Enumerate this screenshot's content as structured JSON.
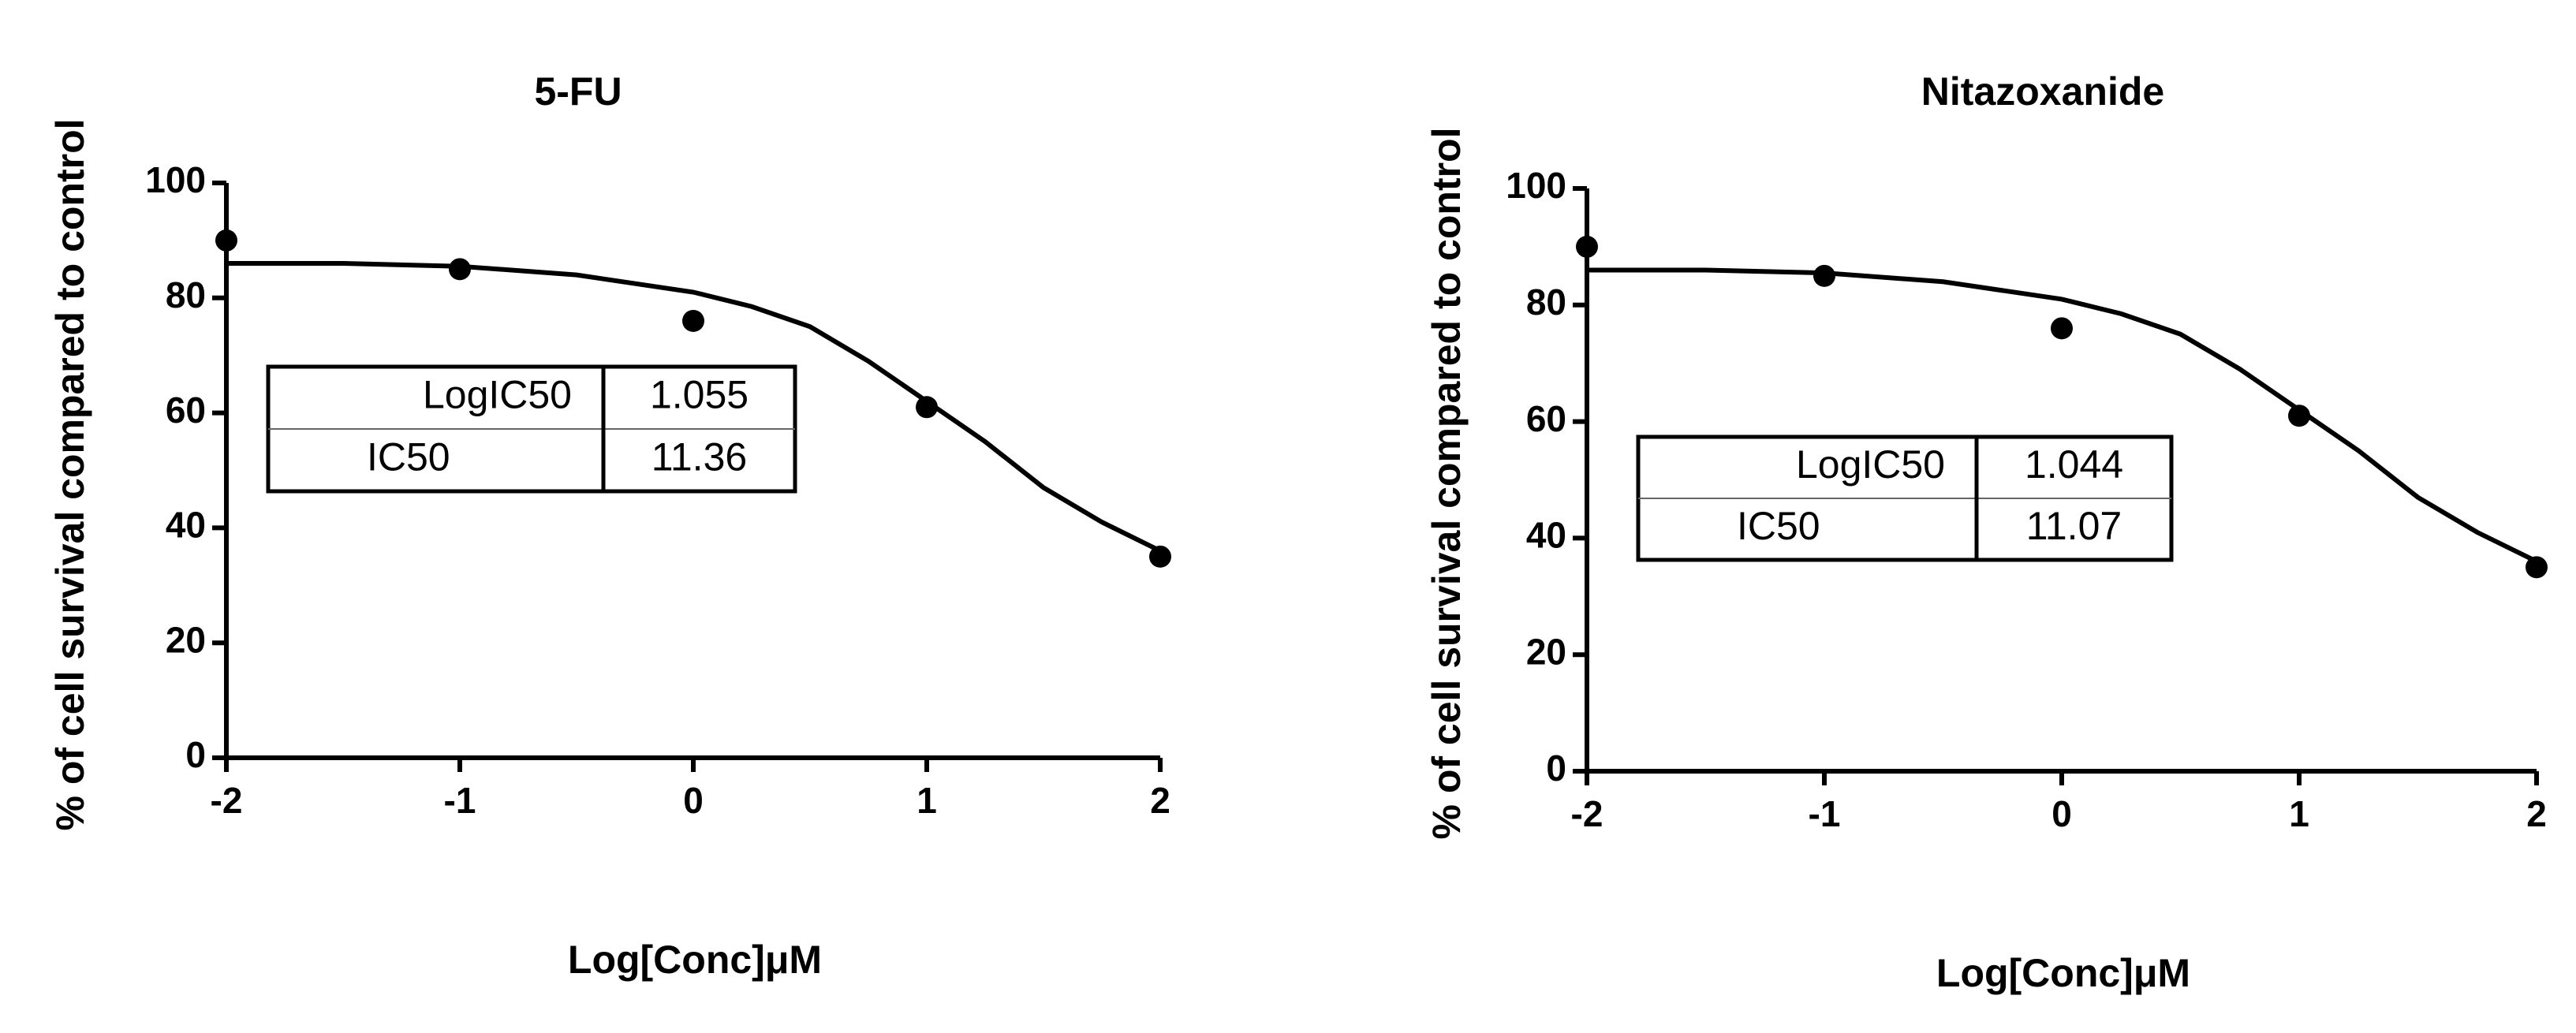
{
  "chart_data": [
    {
      "type": "scatter",
      "title": "5-FU",
      "xlabel": "Log[Conc]μM",
      "ylabel": "% of cell survival compared to control",
      "xlim": [
        -2,
        2
      ],
      "ylim": [
        0,
        100
      ],
      "xticks": [
        -2,
        -1,
        0,
        1,
        2
      ],
      "yticks": [
        0,
        20,
        40,
        60,
        80,
        100
      ],
      "series": [
        {
          "color": "#000000",
          "mode": "markers",
          "x": [
            -2,
            -1,
            0,
            1,
            2
          ],
          "values": [
            90,
            85,
            76,
            61,
            35
          ]
        },
        {
          "color": "#000000",
          "mode": "line",
          "x": [
            -2,
            -1.5,
            -1,
            -0.5,
            0,
            0.25,
            0.5,
            0.75,
            1,
            1.25,
            1.5,
            1.75,
            2
          ],
          "values": [
            86,
            86,
            85.5,
            84,
            81,
            78.5,
            75,
            69,
            62,
            55,
            47,
            41,
            36
          ]
        }
      ],
      "table": {
        "rows": [
          [
            "LogIC50",
            "1.055"
          ],
          [
            "IC50",
            "11.36"
          ]
        ]
      }
    },
    {
      "type": "scatter",
      "title": "Nitazoxanide",
      "xlabel": "Log[Conc]μM",
      "ylabel": "% of cell survival compared to control",
      "xlim": [
        -2,
        2
      ],
      "ylim": [
        0,
        100
      ],
      "xticks": [
        -2,
        -1,
        0,
        1,
        2
      ],
      "yticks": [
        0,
        20,
        40,
        60,
        80,
        100
      ],
      "series": [
        {
          "color": "#000000",
          "mode": "markers",
          "x": [
            -2,
            -1,
            0,
            1,
            2
          ],
          "values": [
            90,
            85,
            76,
            61,
            35
          ]
        },
        {
          "color": "#000000",
          "mode": "line",
          "x": [
            -2,
            -1.5,
            -1,
            -0.5,
            0,
            0.25,
            0.5,
            0.75,
            1,
            1.25,
            1.5,
            1.75,
            2
          ],
          "values": [
            86,
            86,
            85.5,
            84,
            81,
            78.5,
            75,
            69,
            62,
            55,
            47,
            41,
            36
          ]
        }
      ],
      "table": {
        "rows": [
          [
            "LogIC50",
            "1.044"
          ],
          [
            "IC50",
            "11.07"
          ]
        ]
      }
    }
  ]
}
